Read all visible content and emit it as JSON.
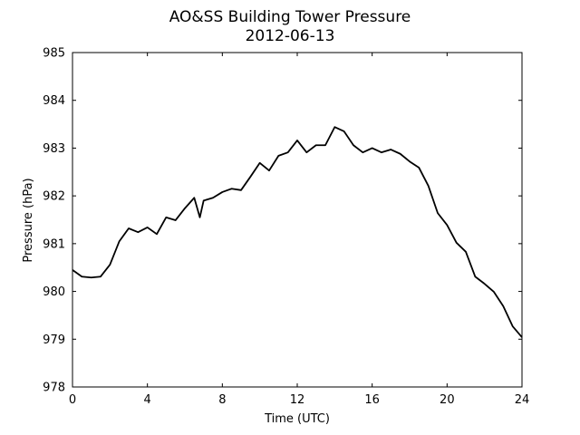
{
  "chart_data": {
    "type": "line",
    "title": "AO&SS Building Tower Pressure",
    "subtitle": "2012-06-13",
    "x_label": "Time (UTC)",
    "y_label": "Pressure (hPa)",
    "x": [
      0,
      0.5,
      1,
      1.5,
      2,
      2.5,
      3,
      3.5,
      4,
      4.5,
      5,
      5.5,
      6,
      6.5,
      6.8,
      7,
      7.5,
      8,
      8.5,
      9,
      9.5,
      10,
      10.5,
      11,
      11.5,
      12,
      12.5,
      13,
      13.5,
      14,
      14.5,
      15,
      15.5,
      16,
      16.5,
      17,
      17.5,
      18,
      18.5,
      19,
      19.5,
      20,
      20.5,
      21,
      21.5,
      22,
      22.5,
      23,
      23.5,
      24
    ],
    "series": [
      {
        "name": "Pressure",
        "color": "#000000",
        "values": [
          980.45,
          980.31,
          980.29,
          980.31,
          980.56,
          981.05,
          981.32,
          981.24,
          981.34,
          981.2,
          981.55,
          981.49,
          981.74,
          981.96,
          981.55,
          981.9,
          981.96,
          982.08,
          982.15,
          982.12,
          982.4,
          982.69,
          982.53,
          982.84,
          982.91,
          983.16,
          982.91,
          983.06,
          983.06,
          983.44,
          983.35,
          983.06,
          982.91,
          983.0,
          982.91,
          982.97,
          982.88,
          982.72,
          982.59,
          982.21,
          981.64,
          981.39,
          981.02,
          980.83,
          980.31,
          980.16,
          979.99,
          979.69,
          979.27,
          979.04
        ]
      }
    ],
    "xlim": [
      0,
      24
    ],
    "xticks": [
      0,
      4,
      8,
      12,
      16,
      20,
      24
    ],
    "ylim": [
      978,
      985
    ],
    "yticks": [
      978,
      979,
      980,
      981,
      982,
      983,
      984,
      985
    ],
    "grid": false
  }
}
